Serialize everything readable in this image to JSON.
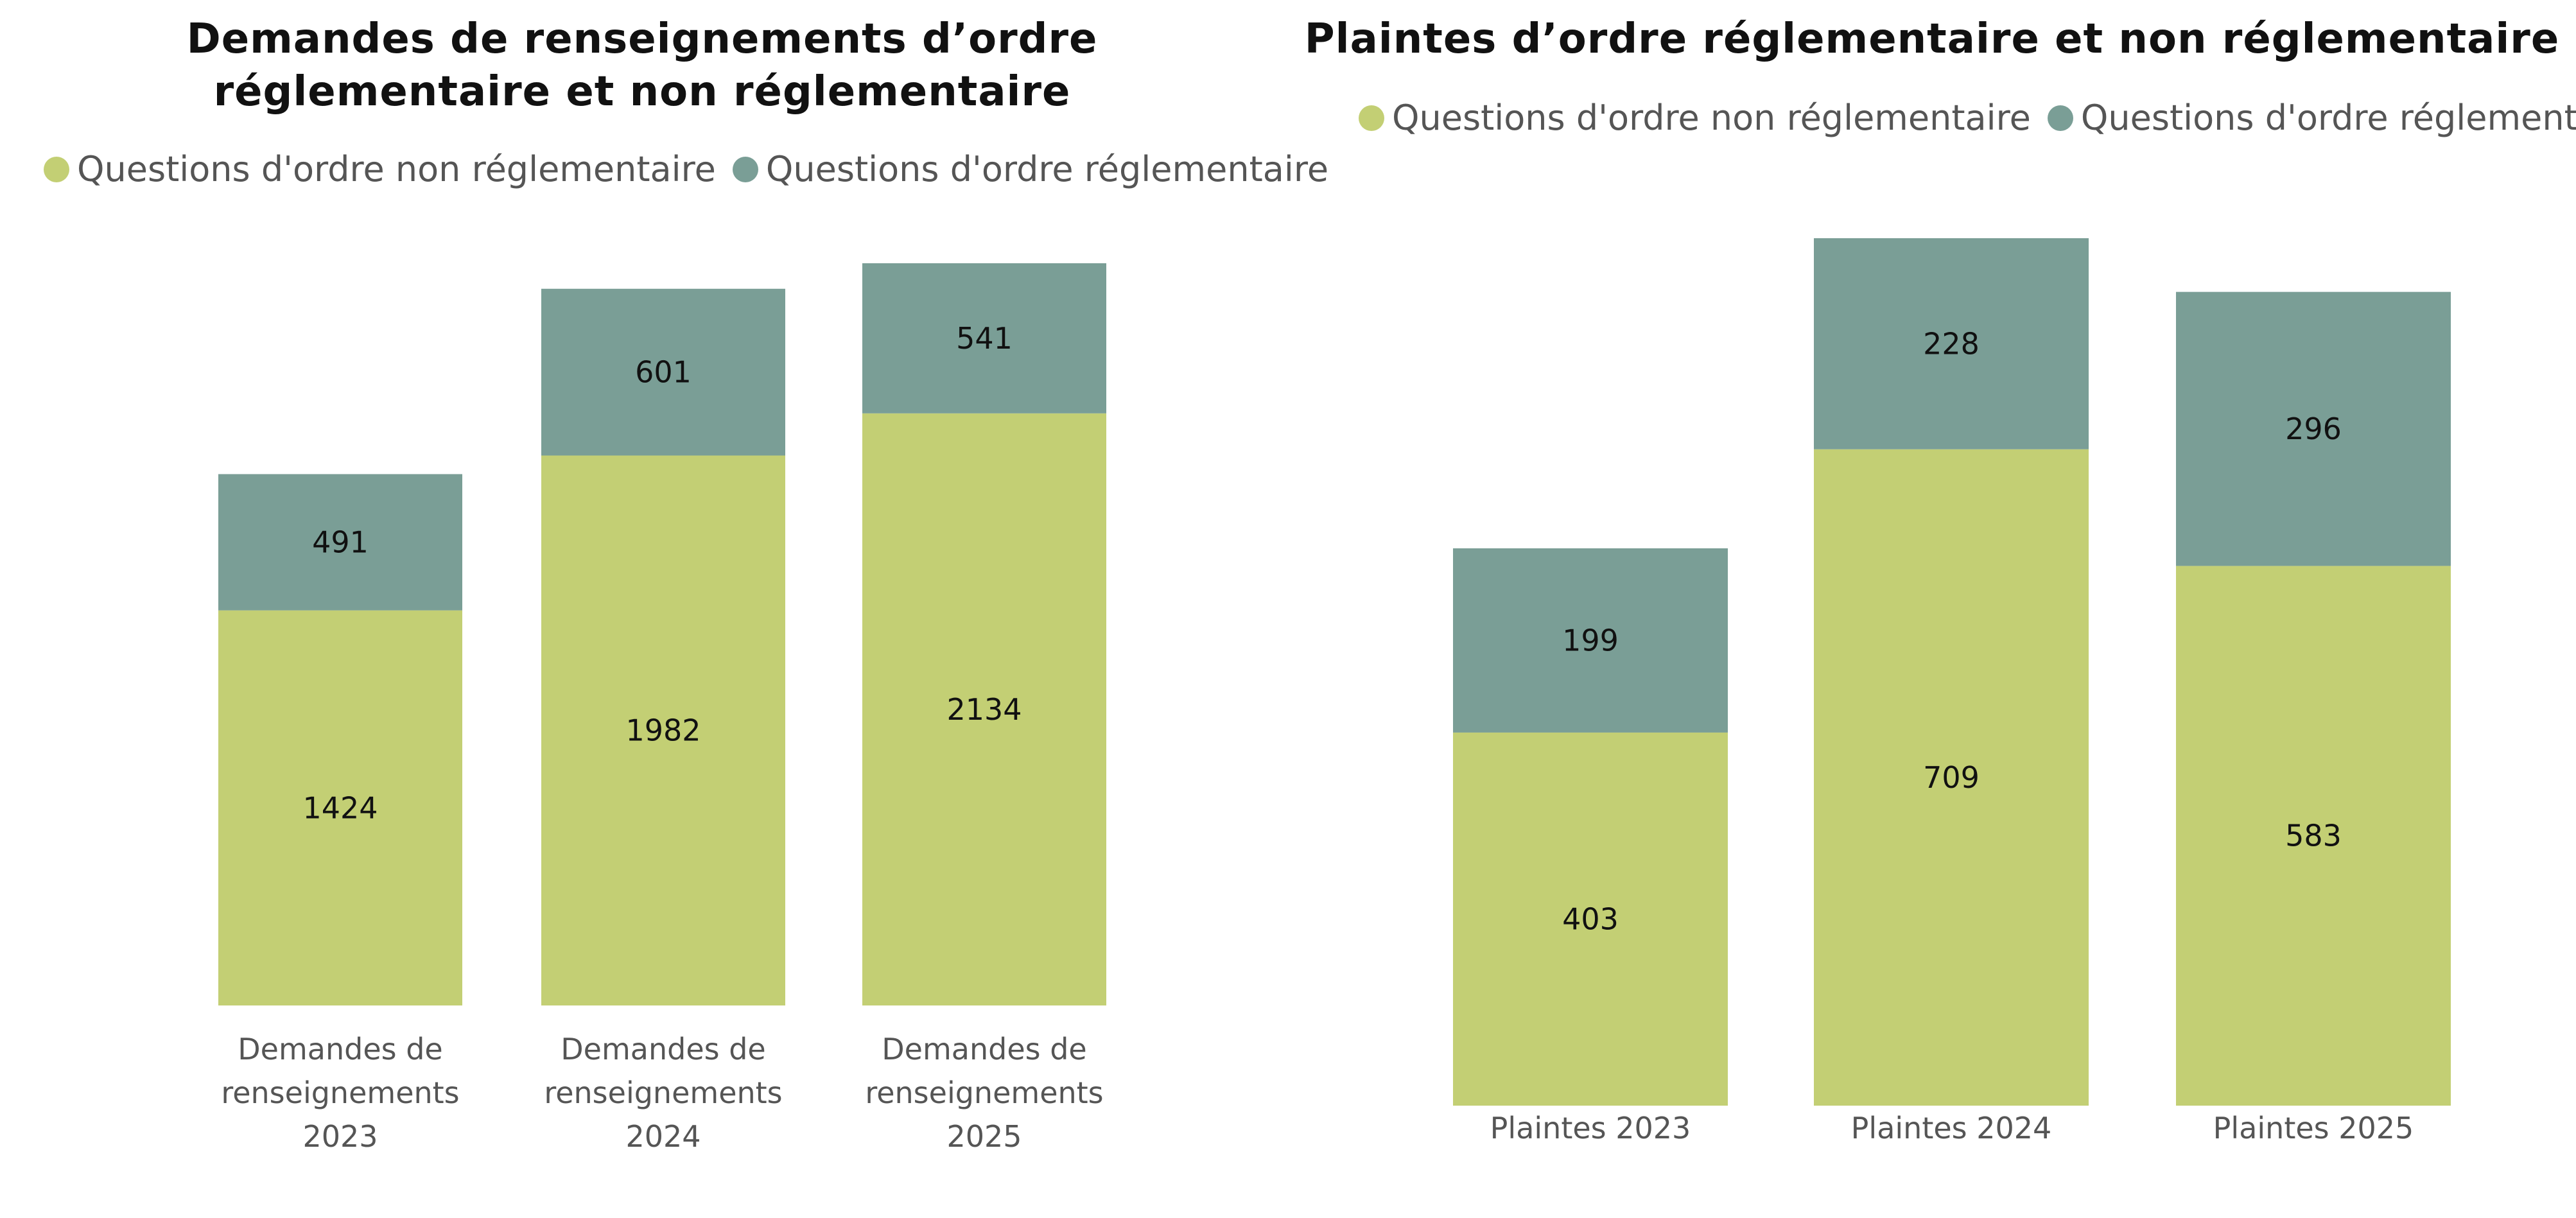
{
  "chart_data": [
    {
      "type": "bar",
      "stacked": true,
      "title": "Demandes de renseignements d’ordre réglementaire et non réglementaire",
      "categories": [
        [
          "Demandes de",
          "renseignements",
          "2023"
        ],
        [
          "Demandes de",
          "renseignements",
          "2024"
        ],
        [
          "Demandes de",
          "renseignements",
          "2025"
        ]
      ],
      "series": [
        {
          "name": "Questions d'ordre non réglementaire",
          "values": [
            1424,
            1982,
            2134
          ],
          "color": "#c3cf74"
        },
        {
          "name": "Questions d'ordre réglementaire",
          "values": [
            491,
            601,
            541
          ],
          "color": "#7a9e96"
        }
      ],
      "ylim": [
        0,
        2675
      ],
      "grid": false,
      "legend_position": "top-left"
    },
    {
      "type": "bar",
      "stacked": true,
      "title": "Plaintes d’ordre réglementaire et non réglementaire",
      "categories": [
        [
          "Plaintes 2023"
        ],
        [
          "Plaintes 2024"
        ],
        [
          "Plaintes 2025"
        ]
      ],
      "series": [
        {
          "name": "Questions d'ordre non réglementaire",
          "values": [
            403,
            709,
            583
          ],
          "color": "#c3cf74"
        },
        {
          "name": "Questions d'ordre réglementaire",
          "values": [
            199,
            228,
            296
          ],
          "color": "#7a9e96"
        }
      ],
      "ylim": [
        0,
        937
      ],
      "grid": false,
      "legend_position": "top"
    }
  ]
}
